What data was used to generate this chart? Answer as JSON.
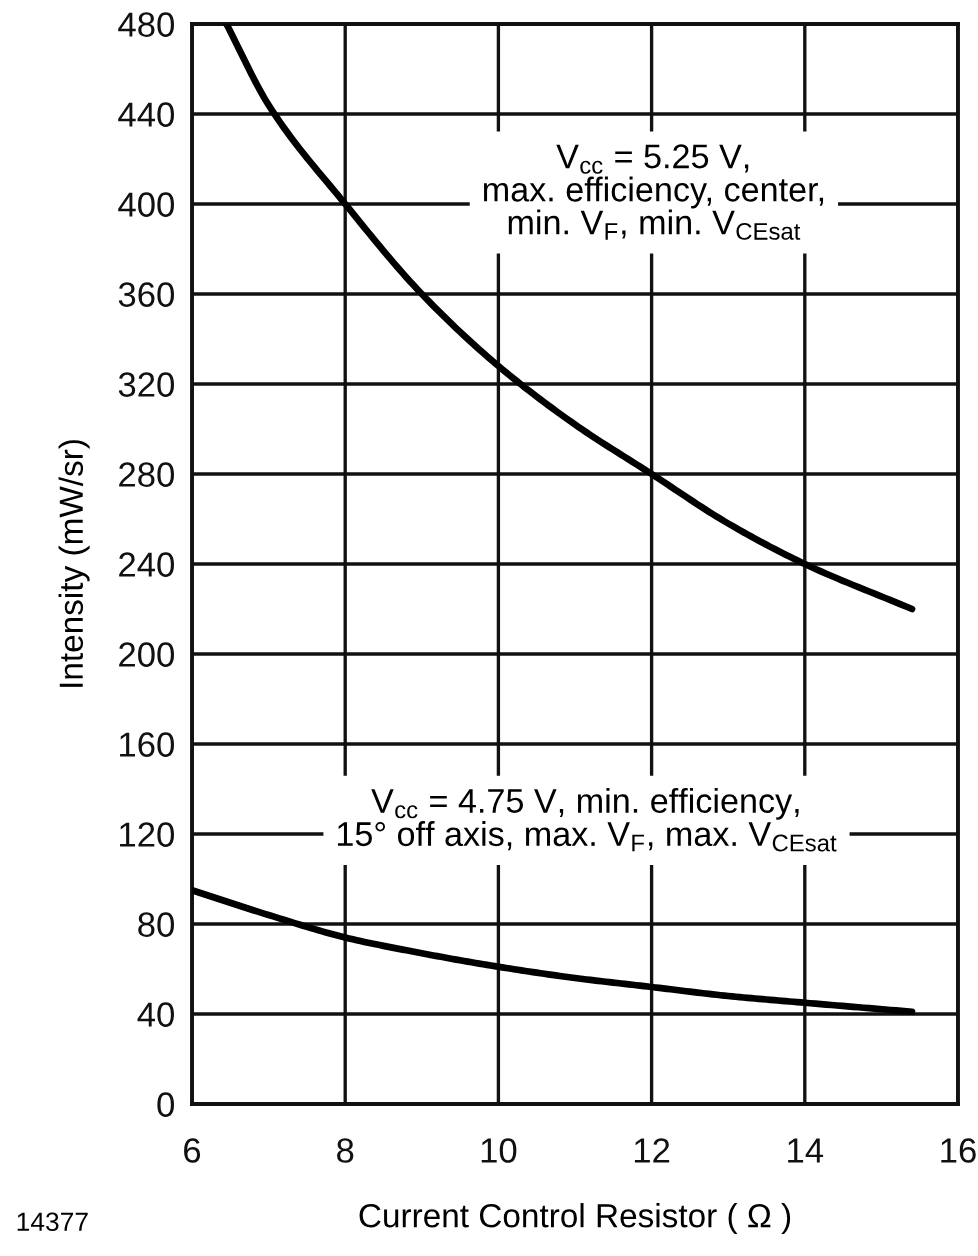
{
  "chart_data": {
    "type": "line",
    "xlabel": "Current Control Resistor ( Ω )",
    "ylabel": "Intensity (mW/sr)",
    "xlim": [
      6,
      16
    ],
    "xticks": [
      6,
      8,
      10,
      12,
      14,
      16
    ],
    "ylim": [
      0,
      480
    ],
    "yticks": [
      0,
      40,
      80,
      120,
      160,
      200,
      240,
      280,
      320,
      360,
      400,
      440,
      480
    ],
    "grid": true,
    "line_style": "solid",
    "annotations": [
      "14377"
    ],
    "series": [
      {
        "name": "V$_{cc}$ = 5.25 V,\nmax. efficiency, center,\nmin. V$_{F}$, min. V$_{CEsat}$",
        "color": "#000000",
        "x": [
          6.45,
          7,
          8,
          9,
          10,
          11,
          12,
          13,
          14,
          15.4
        ],
        "values": [
          480,
          444,
          400,
          360,
          328,
          302,
          280,
          258,
          240,
          220
        ]
      },
      {
        "name": "V$_{cc}$ = 4.75 V, min. efficiency,\n15° off axis, max. V$_{F}$, max. V$_{CEsat}$",
        "color": "#000000",
        "x": [
          6,
          7,
          8,
          9,
          10,
          11,
          12,
          13,
          14,
          15.4
        ],
        "values": [
          95,
          84,
          74,
          67,
          61,
          56,
          52,
          48,
          45,
          41
        ]
      }
    ]
  }
}
